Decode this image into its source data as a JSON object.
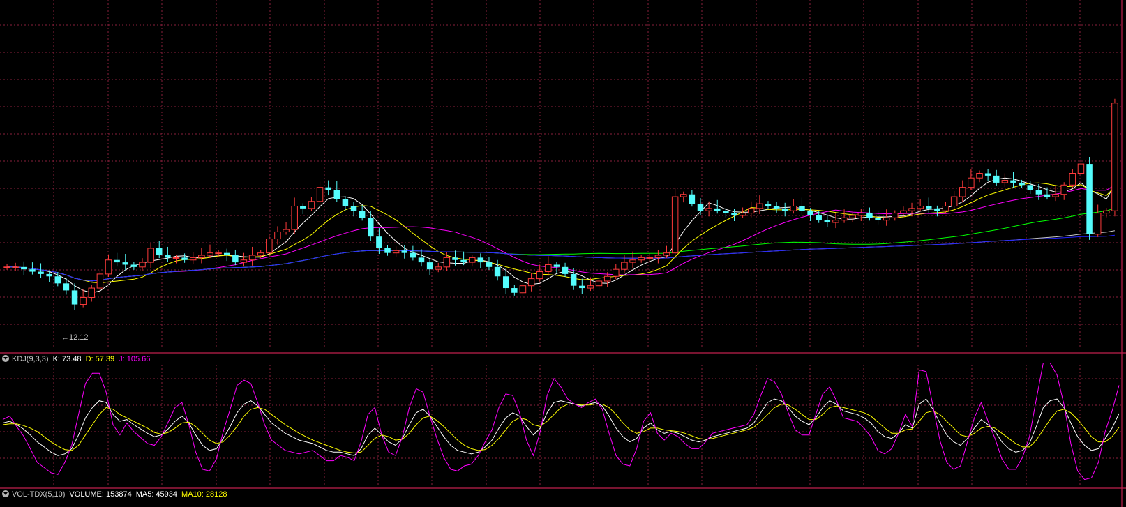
{
  "colors": {
    "background": "#000000",
    "grid": "#8a1f3c",
    "frame": "#c0204e",
    "up_candle": "#ff3b3b",
    "down_candle": "#54fcfc",
    "ma5": "#ffffff",
    "ma10": "#ffff00",
    "ma20": "#ff00ff",
    "ma60": "#00ff00",
    "ma120": "#c8c8c8",
    "ma250": "#2222ff",
    "kdj_k": "#ffffff",
    "kdj_d": "#ffff00",
    "kdj_j": "#ff00ff"
  },
  "kdj_header": {
    "name": "KDJ(9,3,3)",
    "k": "K: 73.48",
    "d": "D: 57.39",
    "j": "J: 105.66",
    "toggle_icon": "chevron-down-icon"
  },
  "vol_header": {
    "name": "VOL-TDX(5,10)",
    "volume": "VOLUME: 153874",
    "ma5": "MA5: 45934",
    "ma10": "MA10: 28128",
    "toggle_icon": "chevron-down-icon"
  },
  "low_marker": "12.12",
  "chart_data": {
    "type": "candlestick",
    "price_close": [
      13.0,
      13.0,
      12.95,
      12.9,
      12.85,
      12.8,
      12.65,
      12.5,
      12.2,
      12.35,
      12.55,
      12.85,
      13.15,
      13.1,
      13.05,
      13.0,
      13.1,
      13.4,
      13.25,
      13.2,
      13.2,
      13.15,
      13.2,
      13.25,
      13.3,
      13.3,
      13.25,
      13.1,
      13.15,
      13.25,
      13.3,
      13.6,
      13.75,
      13.8,
      14.3,
      14.25,
      14.4,
      14.7,
      14.65,
      14.45,
      14.3,
      14.2,
      14.05,
      13.65,
      13.4,
      13.3,
      13.35,
      13.3,
      13.2,
      13.1,
      12.95,
      13.0,
      13.2,
      13.15,
      13.1,
      13.2,
      13.1,
      13.0,
      12.8,
      12.55,
      12.45,
      12.6,
      12.75,
      12.9,
      13.05,
      13.0,
      12.85,
      12.6,
      12.55,
      12.6,
      12.7,
      12.8,
      12.95,
      13.1,
      13.15,
      13.2,
      13.2,
      13.25,
      13.3,
      14.5,
      14.55,
      14.35,
      14.2,
      14.25,
      14.2,
      14.15,
      14.1,
      14.15,
      14.25,
      14.35,
      14.3,
      14.25,
      14.2,
      14.3,
      14.2,
      14.1,
      14.0,
      13.95,
      14.0,
      14.05,
      14.1,
      14.15,
      14.05,
      14.0,
      14.05,
      14.15,
      14.2,
      14.25,
      14.3,
      14.25,
      14.2,
      14.3,
      14.5,
      14.7,
      14.9,
      15.0,
      14.95,
      14.8,
      14.85,
      14.8,
      14.75,
      14.65,
      14.55,
      14.5,
      14.55,
      14.75,
      15.0,
      15.2,
      13.7,
      14.15,
      14.2,
      16.5
    ],
    "kdj_k": [
      62,
      64,
      60,
      55,
      48,
      40,
      34,
      28,
      24,
      26,
      32,
      48,
      68,
      80,
      88,
      86,
      72,
      64,
      66,
      60,
      55,
      50,
      46,
      48,
      55,
      64,
      70,
      62,
      48,
      36,
      30,
      32,
      44,
      58,
      74,
      84,
      88,
      82,
      72,
      62,
      56,
      50,
      46,
      42,
      40,
      38,
      34,
      30,
      28,
      28,
      26,
      24,
      32,
      48,
      56,
      48,
      40,
      36,
      44,
      60,
      74,
      78,
      70,
      58,
      46,
      36,
      30,
      28,
      26,
      28,
      34,
      42,
      56,
      68,
      74,
      70,
      58,
      48,
      56,
      74,
      86,
      88,
      86,
      84,
      82,
      84,
      86,
      82,
      70,
      56,
      46,
      40,
      44,
      56,
      62,
      54,
      50,
      52,
      50,
      46,
      42,
      40,
      42,
      46,
      48,
      50,
      52,
      54,
      56,
      62,
      74,
      86,
      90,
      88,
      80,
      70,
      64,
      60,
      68,
      80,
      88,
      84,
      76,
      74,
      72,
      68,
      62,
      52,
      46,
      44,
      50,
      60,
      56,
      84,
      90,
      78,
      62,
      48,
      40,
      36,
      44,
      56,
      66,
      60,
      52,
      40,
      32,
      28,
      30,
      38,
      58,
      80,
      88,
      90,
      80,
      62,
      46,
      36,
      30,
      32,
      44,
      56,
      73
    ],
    "kdj_d": [
      60,
      61,
      61,
      59,
      56,
      52,
      46,
      40,
      35,
      31,
      30,
      36,
      48,
      60,
      72,
      80,
      78,
      72,
      68,
      64,
      60,
      56,
      51,
      49,
      51,
      56,
      62,
      63,
      58,
      50,
      42,
      38,
      40,
      48,
      58,
      70,
      78,
      80,
      78,
      72,
      66,
      60,
      55,
      50,
      46,
      42,
      39,
      36,
      33,
      30,
      28,
      27,
      28,
      36,
      44,
      48,
      46,
      42,
      43,
      50,
      60,
      68,
      70,
      65,
      58,
      50,
      42,
      36,
      32,
      30,
      31,
      36,
      44,
      54,
      64,
      68,
      66,
      60,
      58,
      64,
      72,
      80,
      84,
      84,
      83,
      83,
      84,
      84,
      80,
      72,
      62,
      54,
      50,
      52,
      56,
      56,
      54,
      53,
      52,
      50,
      47,
      44,
      43,
      44,
      46,
      48,
      50,
      52,
      54,
      57,
      64,
      72,
      80,
      84,
      83,
      78,
      72,
      66,
      66,
      72,
      80,
      82,
      80,
      78,
      76,
      74,
      70,
      63,
      56,
      50,
      50,
      54,
      55,
      64,
      74,
      76,
      72,
      64,
      56,
      48,
      46,
      50,
      56,
      58,
      56,
      50,
      44,
      38,
      34,
      34,
      42,
      54,
      66,
      76,
      78,
      74,
      66,
      56,
      46,
      40,
      40,
      46,
      57
    ],
    "kdj_j": [
      66,
      70,
      58,
      47,
      32,
      16,
      10,
      4,
      2,
      16,
      36,
      72,
      108,
      120,
      120,
      98,
      60,
      48,
      62,
      52,
      45,
      38,
      36,
      46,
      63,
      80,
      86,
      60,
      28,
      8,
      6,
      20,
      52,
      78,
      106,
      112,
      108,
      86,
      60,
      42,
      36,
      30,
      28,
      26,
      28,
      30,
      24,
      18,
      18,
      24,
      22,
      18,
      40,
      72,
      80,
      48,
      28,
      24,
      46,
      80,
      102,
      98,
      70,
      44,
      22,
      8,
      6,
      12,
      14,
      24,
      40,
      54,
      80,
      96,
      94,
      74,
      42,
      24,
      52,
      94,
      114,
      104,
      90,
      84,
      80,
      86,
      90,
      78,
      50,
      24,
      14,
      12,
      32,
      64,
      74,
      50,
      42,
      50,
      46,
      38,
      32,
      32,
      40,
      50,
      52,
      54,
      56,
      58,
      60,
      72,
      94,
      114,
      110,
      96,
      74,
      54,
      48,
      48,
      72,
      96,
      104,
      88,
      68,
      66,
      64,
      56,
      46,
      30,
      26,
      32,
      50,
      72,
      58,
      124,
      122,
      82,
      42,
      16,
      8,
      12,
      40,
      68,
      86,
      64,
      44,
      20,
      8,
      8,
      22,
      46,
      90,
      132,
      132,
      118,
      84,
      38,
      6,
      -4,
      -2,
      16,
      52,
      76,
      106
    ],
    "ylim_price": [
      11.3,
      18.7
    ],
    "ylim_kdj": [
      -10,
      130
    ]
  }
}
